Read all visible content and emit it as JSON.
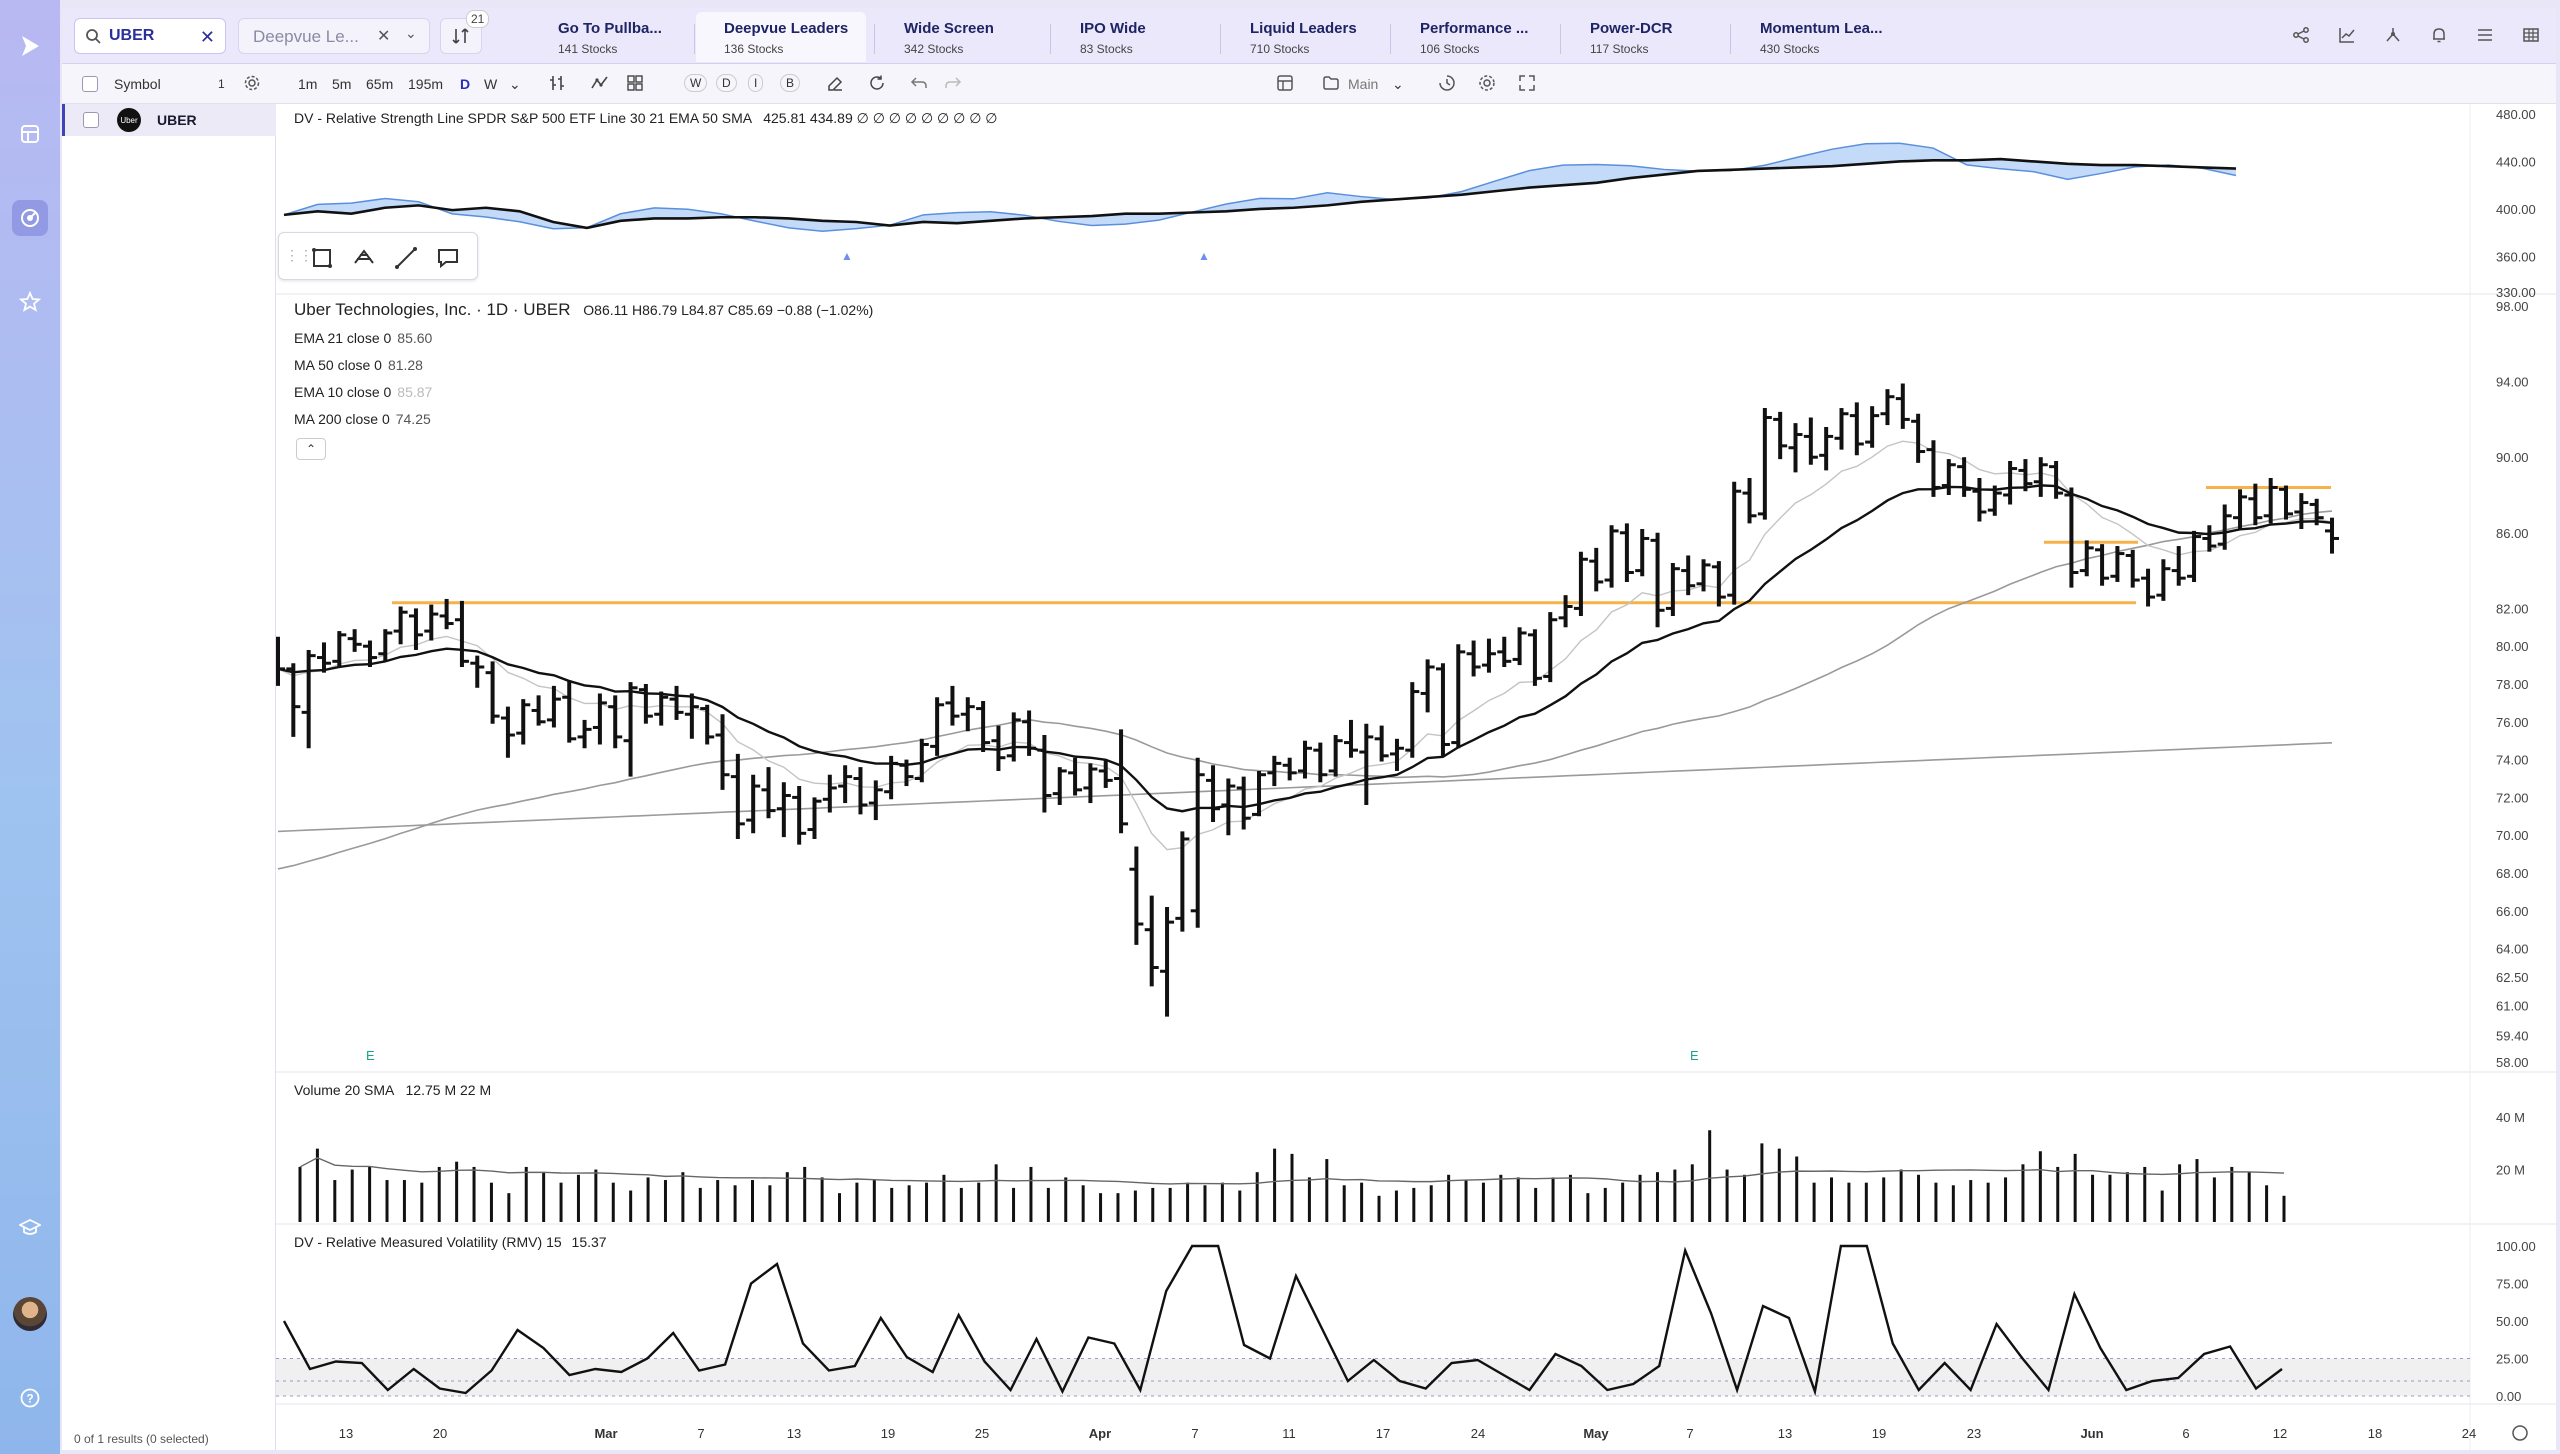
{
  "rail": {
    "icons": [
      "logo-play-icon",
      "watchlist-icon",
      "scanner-icon",
      "favorites-icon",
      "learn-icon",
      "avatar",
      "help-icon"
    ]
  },
  "topbar": {
    "search_value": "UBER",
    "list_select": "Deepvue Le...",
    "filter_badge": "21",
    "tabs": [
      {
        "label": "Go To Pullba...",
        "count": "141 Stocks"
      },
      {
        "label": "Deepvue Leaders",
        "count": "136 Stocks"
      },
      {
        "label": "Wide Screen",
        "count": "342 Stocks"
      },
      {
        "label": "IPO Wide",
        "count": "83 Stocks"
      },
      {
        "label": "Liquid Leaders",
        "count": "710 Stocks"
      },
      {
        "label": "Performance ...",
        "count": "106 Stocks"
      },
      {
        "label": "Power-DCR",
        "count": "117 Stocks"
      },
      {
        "label": "Momentum Lea...",
        "count": "430 Stocks"
      }
    ],
    "right_icons": [
      "share-icon",
      "chart-line-icon",
      "chart-compare-icon",
      "alert-bell-icon",
      "list-icon",
      "grid-icon"
    ]
  },
  "toolbar2": {
    "symbol_header": "Symbol",
    "symbol_count": "1",
    "timeframes": [
      "1m",
      "5m",
      "65m",
      "195m",
      "D",
      "W"
    ],
    "active_timeframe": "D",
    "letters": [
      "W",
      "D",
      "I",
      "B"
    ],
    "layout_label": "Main"
  },
  "symbols": {
    "rows": [
      {
        "ticker": "UBER",
        "logo": "Uber"
      }
    ],
    "results_text": "0 of 1 results (0 selected)"
  },
  "chart": {
    "rs_legend": "DV - Relative Strength Line SPDR S&P 500 ETF Line 30 21 EMA 50 SMA",
    "rs_values": "425.81  434.89  ∅ ∅ ∅ ∅ ∅ ∅ ∅ ∅ ∅",
    "title": "Uber Technologies, Inc. · 1D · UBER",
    "ohlc": "O86.11  H86.79  L84.87  C85.69  −0.88 (−1.02%)",
    "indicators": [
      {
        "label": "EMA 21 close 0",
        "value": "85.60"
      },
      {
        "label": "MA 50 close 0",
        "value": "81.28"
      },
      {
        "label": "EMA 10 close 0",
        "value": "85.87"
      },
      {
        "label": "MA 200 close 0",
        "value": "74.25"
      }
    ],
    "volume_legend": "Volume 20 SMA",
    "volume_values": "12.75 M  22 M",
    "rmv_legend": "DV - Relative Measured Volatility (RMV) 15",
    "rmv_value": "15.37",
    "earnings_marker": "E",
    "x_labels": [
      "13",
      "20",
      "Mar",
      "7",
      "13",
      "19",
      "25",
      "Apr",
      "7",
      "11",
      "17",
      "24",
      "May",
      "7",
      "13",
      "19",
      "23",
      "Jun",
      "6",
      "12",
      "18",
      "24"
    ],
    "y_price_labels": [
      "98.00",
      "94.00",
      "90.00",
      "86.00",
      "82.00",
      "80.00",
      "78.00",
      "76.00",
      "74.00",
      "72.00",
      "70.00",
      "68.00",
      "66.00",
      "64.00",
      "62.50",
      "61.00",
      "59.40",
      "58.00"
    ],
    "y_rs_labels": [
      "480.00",
      "440.00",
      "400.00",
      "360.00",
      "330.00"
    ],
    "y_vol_labels": [
      "40 M",
      "20 M"
    ],
    "y_rmv_labels": [
      "100.00",
      "75.00",
      "50.00",
      "25.00",
      "0.00"
    ],
    "colors": {
      "bar": "#111111",
      "ema21": "#111111",
      "ma_grey": "#9a9a9a",
      "resistance": "#f6b24a",
      "rs_fill": "#a9ccf5",
      "rs_line": "#5b8fdc",
      "earnings": "#18a48a"
    }
  },
  "chart_data": {
    "type": "ohlc",
    "symbol": "UBER",
    "timeframe": "1D",
    "last": {
      "open": 86.11,
      "high": 86.79,
      "low": 84.87,
      "close": 85.69,
      "change": -0.88,
      "change_pct": -1.02
    },
    "moving_averages": {
      "ema21": 85.6,
      "ma50": 81.28,
      "ema10": 85.87,
      "ma200": 74.25
    },
    "price_range": [
      58,
      98
    ],
    "resistance_levels": [
      82.3,
      85.5,
      88.4
    ],
    "bars": [
      {
        "o": 79.3,
        "h": 80.5,
        "l": 77.9,
        "c": 78.8
      },
      {
        "o": 78.8,
        "h": 79.1,
        "l": 75.2,
        "c": 76.8
      },
      {
        "o": 76.5,
        "h": 79.8,
        "l": 74.6,
        "c": 79.5
      },
      {
        "o": 79.4,
        "h": 80.2,
        "l": 78.6,
        "c": 79.1
      },
      {
        "o": 79.2,
        "h": 80.8,
        "l": 78.9,
        "c": 80.6
      },
      {
        "o": 80.4,
        "h": 80.9,
        "l": 79.7,
        "c": 80.1
      },
      {
        "o": 80.0,
        "h": 80.3,
        "l": 78.9,
        "c": 79.4
      },
      {
        "o": 79.6,
        "h": 80.9,
        "l": 79.2,
        "c": 80.7
      },
      {
        "o": 80.8,
        "h": 82.1,
        "l": 80.1,
        "c": 81.8
      },
      {
        "o": 81.6,
        "h": 82.0,
        "l": 79.8,
        "c": 80.6
      },
      {
        "o": 80.8,
        "h": 82.2,
        "l": 80.3,
        "c": 81.7
      },
      {
        "o": 81.6,
        "h": 82.5,
        "l": 80.9,
        "c": 81.2
      },
      {
        "o": 81.4,
        "h": 82.4,
        "l": 78.9,
        "c": 79.2
      },
      {
        "o": 79.1,
        "h": 79.5,
        "l": 77.8,
        "c": 78.9
      },
      {
        "o": 78.6,
        "h": 79.2,
        "l": 75.9,
        "c": 76.3
      },
      {
        "o": 76.2,
        "h": 76.8,
        "l": 74.1,
        "c": 75.3
      },
      {
        "o": 75.4,
        "h": 77.2,
        "l": 74.8,
        "c": 76.9
      },
      {
        "o": 76.6,
        "h": 77.4,
        "l": 75.8,
        "c": 76.0
      },
      {
        "o": 76.1,
        "h": 77.9,
        "l": 75.7,
        "c": 77.2
      },
      {
        "o": 77.3,
        "h": 78.2,
        "l": 74.9,
        "c": 75.1
      },
      {
        "o": 75.2,
        "h": 76.1,
        "l": 74.6,
        "c": 75.6
      },
      {
        "o": 75.7,
        "h": 77.5,
        "l": 74.8,
        "c": 77.0
      },
      {
        "o": 76.8,
        "h": 77.4,
        "l": 74.6,
        "c": 75.2
      },
      {
        "o": 75.0,
        "h": 78.1,
        "l": 73.1,
        "c": 77.8
      },
      {
        "o": 77.7,
        "h": 78.0,
        "l": 75.9,
        "c": 76.3
      },
      {
        "o": 76.4,
        "h": 77.6,
        "l": 75.8,
        "c": 77.3
      },
      {
        "o": 77.2,
        "h": 77.9,
        "l": 76.1,
        "c": 76.5
      },
      {
        "o": 76.4,
        "h": 77.5,
        "l": 75.1,
        "c": 76.8
      },
      {
        "o": 76.7,
        "h": 76.9,
        "l": 74.8,
        "c": 75.2
      },
      {
        "o": 75.3,
        "h": 76.4,
        "l": 72.4,
        "c": 73.2
      },
      {
        "o": 73.1,
        "h": 74.3,
        "l": 69.8,
        "c": 70.6
      },
      {
        "o": 70.8,
        "h": 73.2,
        "l": 70.1,
        "c": 72.6
      },
      {
        "o": 72.4,
        "h": 73.6,
        "l": 70.9,
        "c": 71.3
      },
      {
        "o": 71.4,
        "h": 72.8,
        "l": 69.9,
        "c": 72.1
      },
      {
        "o": 72.0,
        "h": 72.6,
        "l": 69.5,
        "c": 70.1
      },
      {
        "o": 70.3,
        "h": 72.0,
        "l": 69.8,
        "c": 71.8
      },
      {
        "o": 71.9,
        "h": 73.2,
        "l": 71.2,
        "c": 72.5
      },
      {
        "o": 72.6,
        "h": 73.7,
        "l": 71.7,
        "c": 73.1
      },
      {
        "o": 73.0,
        "h": 73.6,
        "l": 71.1,
        "c": 71.6
      },
      {
        "o": 71.7,
        "h": 72.9,
        "l": 70.8,
        "c": 72.4
      },
      {
        "o": 72.3,
        "h": 74.2,
        "l": 71.9,
        "c": 73.8
      },
      {
        "o": 73.7,
        "h": 74.0,
        "l": 72.6,
        "c": 73.1
      },
      {
        "o": 73.0,
        "h": 75.1,
        "l": 72.8,
        "c": 74.8
      },
      {
        "o": 74.7,
        "h": 77.3,
        "l": 74.2,
        "c": 76.9
      },
      {
        "o": 77.0,
        "h": 77.9,
        "l": 75.8,
        "c": 76.3
      },
      {
        "o": 76.4,
        "h": 77.3,
        "l": 75.5,
        "c": 76.8
      },
      {
        "o": 76.7,
        "h": 77.1,
        "l": 74.4,
        "c": 74.9
      },
      {
        "o": 75.0,
        "h": 75.8,
        "l": 73.4,
        "c": 74.1
      },
      {
        "o": 74.2,
        "h": 76.5,
        "l": 73.9,
        "c": 76.1
      },
      {
        "o": 76.0,
        "h": 76.6,
        "l": 74.2,
        "c": 74.6
      },
      {
        "o": 74.5,
        "h": 75.3,
        "l": 71.2,
        "c": 72.1
      },
      {
        "o": 72.2,
        "h": 73.6,
        "l": 71.6,
        "c": 73.4
      },
      {
        "o": 73.3,
        "h": 74.1,
        "l": 72.1,
        "c": 72.4
      },
      {
        "o": 72.5,
        "h": 73.8,
        "l": 71.7,
        "c": 73.5
      },
      {
        "o": 73.4,
        "h": 74.0,
        "l": 72.5,
        "c": 72.9
      },
      {
        "o": 73.0,
        "h": 75.6,
        "l": 70.1,
        "c": 70.6
      },
      {
        "o": 68.2,
        "h": 69.4,
        "l": 64.2,
        "c": 65.3
      },
      {
        "o": 65.0,
        "h": 66.8,
        "l": 62.0,
        "c": 63.0
      },
      {
        "o": 62.8,
        "h": 66.2,
        "l": 60.4,
        "c": 65.4
      },
      {
        "o": 65.6,
        "h": 70.2,
        "l": 64.9,
        "c": 69.8
      },
      {
        "o": 66.0,
        "h": 74.1,
        "l": 65.1,
        "c": 73.2
      },
      {
        "o": 72.9,
        "h": 73.7,
        "l": 70.7,
        "c": 71.4
      },
      {
        "o": 71.6,
        "h": 73.0,
        "l": 70.0,
        "c": 72.6
      },
      {
        "o": 72.5,
        "h": 73.1,
        "l": 70.3,
        "c": 70.9
      },
      {
        "o": 71.1,
        "h": 73.4,
        "l": 71.0,
        "c": 73.2
      },
      {
        "o": 73.3,
        "h": 74.2,
        "l": 72.6,
        "c": 73.8
      },
      {
        "o": 73.7,
        "h": 74.1,
        "l": 72.9,
        "c": 73.3
      },
      {
        "o": 73.4,
        "h": 75.0,
        "l": 73.0,
        "c": 74.6
      },
      {
        "o": 74.5,
        "h": 74.9,
        "l": 72.8,
        "c": 73.2
      },
      {
        "o": 73.4,
        "h": 75.3,
        "l": 73.1,
        "c": 75.0
      },
      {
        "o": 74.9,
        "h": 76.1,
        "l": 74.1,
        "c": 74.5
      },
      {
        "o": 74.4,
        "h": 75.9,
        "l": 71.6,
        "c": 75.2
      },
      {
        "o": 75.1,
        "h": 75.8,
        "l": 73.9,
        "c": 74.2
      },
      {
        "o": 74.3,
        "h": 75.1,
        "l": 73.4,
        "c": 74.6
      },
      {
        "o": 74.5,
        "h": 78.1,
        "l": 74.1,
        "c": 77.6
      },
      {
        "o": 77.5,
        "h": 79.3,
        "l": 76.5,
        "c": 78.9
      },
      {
        "o": 78.8,
        "h": 79.1,
        "l": 74.2,
        "c": 74.8
      },
      {
        "o": 74.9,
        "h": 80.1,
        "l": 74.6,
        "c": 79.7
      },
      {
        "o": 79.6,
        "h": 80.3,
        "l": 78.4,
        "c": 78.9
      },
      {
        "o": 79.0,
        "h": 80.4,
        "l": 78.6,
        "c": 79.6
      },
      {
        "o": 79.7,
        "h": 80.5,
        "l": 78.9,
        "c": 79.2
      },
      {
        "o": 79.3,
        "h": 81.0,
        "l": 79.0,
        "c": 80.7
      },
      {
        "o": 80.6,
        "h": 80.9,
        "l": 77.9,
        "c": 78.3
      },
      {
        "o": 78.4,
        "h": 81.8,
        "l": 78.1,
        "c": 81.4
      },
      {
        "o": 81.5,
        "h": 82.7,
        "l": 81.0,
        "c": 82.1
      },
      {
        "o": 82.0,
        "h": 85.0,
        "l": 81.6,
        "c": 84.6
      },
      {
        "o": 84.5,
        "h": 85.2,
        "l": 82.9,
        "c": 83.4
      },
      {
        "o": 83.5,
        "h": 86.4,
        "l": 83.1,
        "c": 86.1
      },
      {
        "o": 86.0,
        "h": 86.5,
        "l": 83.4,
        "c": 83.9
      },
      {
        "o": 84.0,
        "h": 86.2,
        "l": 83.7,
        "c": 85.7
      },
      {
        "o": 85.6,
        "h": 86.0,
        "l": 81.0,
        "c": 81.9
      },
      {
        "o": 82.0,
        "h": 84.4,
        "l": 81.6,
        "c": 84.1
      },
      {
        "o": 84.0,
        "h": 84.8,
        "l": 82.7,
        "c": 83.2
      },
      {
        "o": 83.3,
        "h": 84.6,
        "l": 82.9,
        "c": 84.3
      },
      {
        "o": 84.2,
        "h": 84.5,
        "l": 82.1,
        "c": 82.6
      },
      {
        "o": 82.7,
        "h": 88.7,
        "l": 82.2,
        "c": 88.2
      },
      {
        "o": 88.1,
        "h": 88.9,
        "l": 86.5,
        "c": 86.9
      },
      {
        "o": 87.0,
        "h": 92.6,
        "l": 86.7,
        "c": 92.1
      },
      {
        "o": 92.0,
        "h": 92.4,
        "l": 89.9,
        "c": 90.6
      },
      {
        "o": 90.5,
        "h": 91.8,
        "l": 89.2,
        "c": 91.2
      },
      {
        "o": 91.1,
        "h": 92.1,
        "l": 89.6,
        "c": 90.0
      },
      {
        "o": 90.1,
        "h": 91.6,
        "l": 89.3,
        "c": 91.1
      },
      {
        "o": 91.0,
        "h": 92.6,
        "l": 90.4,
        "c": 92.3
      },
      {
        "o": 92.2,
        "h": 92.9,
        "l": 90.1,
        "c": 90.7
      },
      {
        "o": 90.8,
        "h": 92.7,
        "l": 90.5,
        "c": 92.2
      },
      {
        "o": 92.3,
        "h": 93.6,
        "l": 91.7,
        "c": 93.2
      },
      {
        "o": 93.1,
        "h": 93.9,
        "l": 91.5,
        "c": 92.0
      },
      {
        "o": 91.9,
        "h": 92.3,
        "l": 89.7,
        "c": 90.3
      },
      {
        "o": 90.4,
        "h": 90.9,
        "l": 87.9,
        "c": 88.4
      },
      {
        "o": 88.5,
        "h": 89.9,
        "l": 88.0,
        "c": 89.6
      },
      {
        "o": 89.5,
        "h": 90.0,
        "l": 87.9,
        "c": 88.3
      },
      {
        "o": 88.2,
        "h": 88.9,
        "l": 86.6,
        "c": 87.1
      },
      {
        "o": 87.2,
        "h": 88.5,
        "l": 86.9,
        "c": 88.1
      },
      {
        "o": 88.0,
        "h": 89.8,
        "l": 87.5,
        "c": 89.4
      },
      {
        "o": 89.3,
        "h": 89.9,
        "l": 88.2,
        "c": 88.6
      },
      {
        "o": 88.7,
        "h": 90.0,
        "l": 87.9,
        "c": 89.6
      },
      {
        "o": 89.5,
        "h": 89.8,
        "l": 87.8,
        "c": 88.1
      },
      {
        "o": 88.0,
        "h": 88.4,
        "l": 83.1,
        "c": 83.9
      },
      {
        "o": 84.0,
        "h": 85.6,
        "l": 83.7,
        "c": 85.2
      },
      {
        "o": 85.1,
        "h": 85.4,
        "l": 83.2,
        "c": 83.6
      },
      {
        "o": 83.7,
        "h": 85.3,
        "l": 83.4,
        "c": 84.9
      },
      {
        "o": 84.8,
        "h": 85.1,
        "l": 83.1,
        "c": 83.5
      },
      {
        "o": 83.6,
        "h": 84.1,
        "l": 82.1,
        "c": 82.6
      },
      {
        "o": 82.7,
        "h": 84.6,
        "l": 82.4,
        "c": 84.1
      },
      {
        "o": 84.0,
        "h": 85.3,
        "l": 83.2,
        "c": 83.6
      },
      {
        "o": 83.7,
        "h": 86.1,
        "l": 83.4,
        "c": 85.8
      },
      {
        "o": 85.7,
        "h": 86.4,
        "l": 85.0,
        "c": 85.3
      },
      {
        "o": 85.4,
        "h": 87.5,
        "l": 85.1,
        "c": 86.9
      },
      {
        "o": 86.8,
        "h": 88.3,
        "l": 86.2,
        "c": 87.9
      },
      {
        "o": 87.8,
        "h": 88.6,
        "l": 86.4,
        "c": 86.8
      },
      {
        "o": 86.9,
        "h": 88.9,
        "l": 86.5,
        "c": 88.4
      },
      {
        "o": 88.3,
        "h": 88.5,
        "l": 86.7,
        "c": 87.0
      },
      {
        "o": 87.1,
        "h": 88.1,
        "l": 86.2,
        "c": 87.6
      },
      {
        "o": 87.5,
        "h": 87.8,
        "l": 86.4,
        "c": 86.8
      },
      {
        "o": 86.1,
        "h": 86.8,
        "l": 84.9,
        "c": 85.7
      }
    ],
    "volume_sma": 22,
    "volume_last_millions": 12.75,
    "volume": [
      21,
      28,
      16,
      20,
      21,
      16,
      16,
      15,
      21,
      23,
      21,
      15,
      11,
      21,
      19,
      15,
      18,
      20,
      15,
      12,
      17,
      16,
      19,
      13,
      16,
      14,
      16,
      14,
      19,
      21,
      17,
      11,
      15,
      16,
      13,
      14,
      15,
      18,
      13,
      15,
      22,
      13,
      21,
      13,
      17,
      14,
      11,
      11,
      12,
      13,
      13,
      15,
      14,
      15,
      12,
      19,
      28,
      26,
      17,
      24,
      14,
      15,
      10,
      12,
      13,
      14,
      18,
      16,
      15,
      18,
      17,
      13,
      17,
      18,
      11,
      13,
      15,
      18,
      19,
      20,
      22,
      35,
      20,
      18,
      30,
      28,
      25,
      15,
      17,
      15,
      15,
      17,
      20,
      18,
      15,
      14,
      16,
      15,
      17,
      22,
      27,
      21,
      26,
      18,
      18,
      19,
      21,
      12,
      22,
      24,
      17,
      21,
      19,
      14,
      10
    ],
    "rmv_last": 15.37,
    "rmv": [
      50,
      18,
      23,
      22,
      4,
      18,
      5,
      2,
      17,
      44,
      32,
      14,
      18,
      16,
      25,
      42,
      17,
      21,
      75,
      88,
      35,
      17,
      20,
      52,
      26,
      16,
      54,
      23,
      4,
      38,
      3,
      39,
      35,
      4,
      70,
      100,
      100,
      34,
      25,
      80,
      45,
      10,
      24,
      10,
      5,
      22,
      24,
      14,
      4,
      28,
      20,
      4,
      8,
      20,
      97,
      55,
      4,
      60,
      52,
      3,
      100,
      100,
      35,
      4,
      22,
      4,
      48,
      25,
      4,
      68,
      32,
      4,
      10,
      12,
      28,
      33,
      5,
      18
    ],
    "rs_line": [
      395,
      398,
      396,
      401,
      403,
      399,
      401,
      398,
      389,
      384,
      390,
      392,
      392,
      393,
      393,
      392,
      390,
      389,
      386,
      389,
      388,
      390,
      392,
      393,
      394,
      396,
      396,
      397,
      398,
      400,
      401,
      403,
      406,
      408,
      410,
      412,
      415,
      418,
      420,
      422,
      426,
      429,
      432,
      433,
      434,
      435,
      436,
      438,
      440,
      441,
      441,
      442,
      440,
      438,
      437,
      437,
      436,
      435,
      434
    ],
    "rs_range": [
      330,
      480
    ]
  }
}
